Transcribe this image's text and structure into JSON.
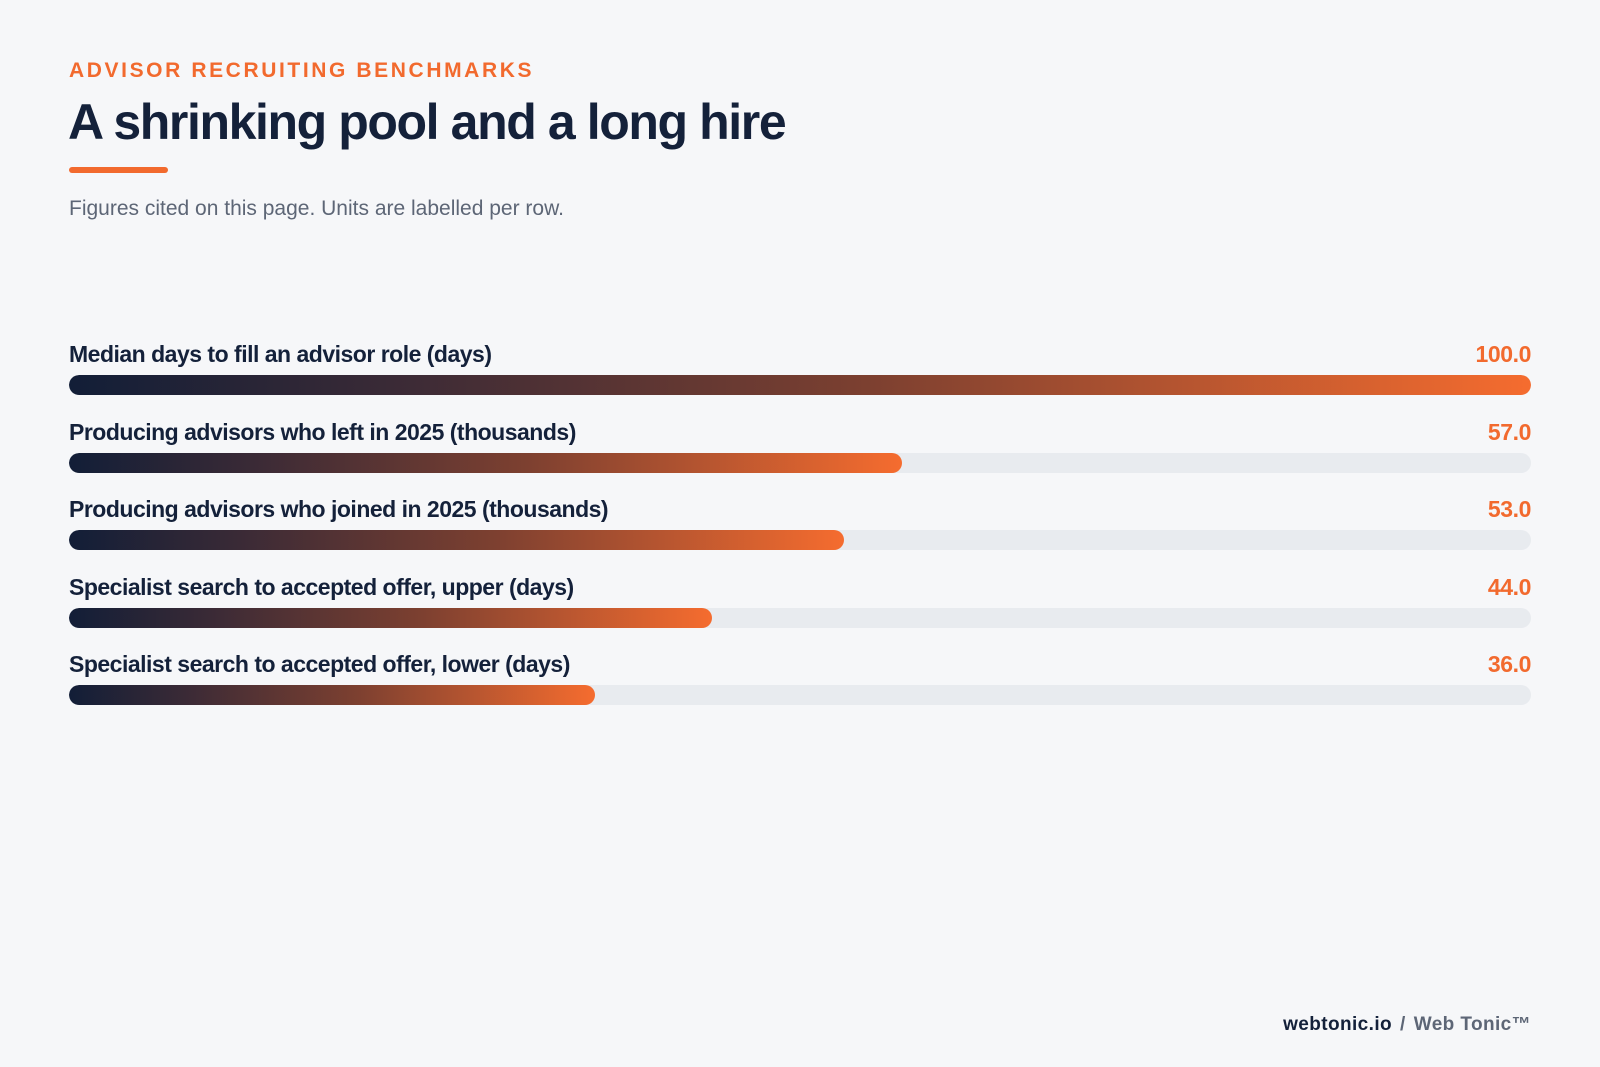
{
  "header": {
    "kicker": "ADVISOR RECRUITING BENCHMARKS",
    "title": "A shrinking pool and a long hire",
    "subtitle": "Figures cited on this page. Units are labelled per row."
  },
  "chart_data": {
    "type": "bar",
    "orientation": "horizontal",
    "categories": [
      "Median days to fill an advisor role (days)",
      "Producing advisors who left in 2025 (thousands)",
      "Producing advisors who joined in 2025 (thousands)",
      "Specialist search to accepted offer, upper (days)",
      "Specialist search to accepted offer, lower (days)"
    ],
    "values": [
      100.0,
      57.0,
      53.0,
      44.0,
      36.0
    ],
    "value_labels": [
      "100.0",
      "57.0",
      "53.0",
      "44.0",
      "36.0"
    ],
    "xlim": [
      0,
      100
    ],
    "grid": false,
    "colors": {
      "bar_start": "#121e37",
      "bar_end": "#f56c2f",
      "track": "#e8ebef",
      "value_text": "#f26a2e"
    }
  },
  "footer": {
    "site": "webtonic.io",
    "separator": "/",
    "brand": "Web Tonic™"
  }
}
